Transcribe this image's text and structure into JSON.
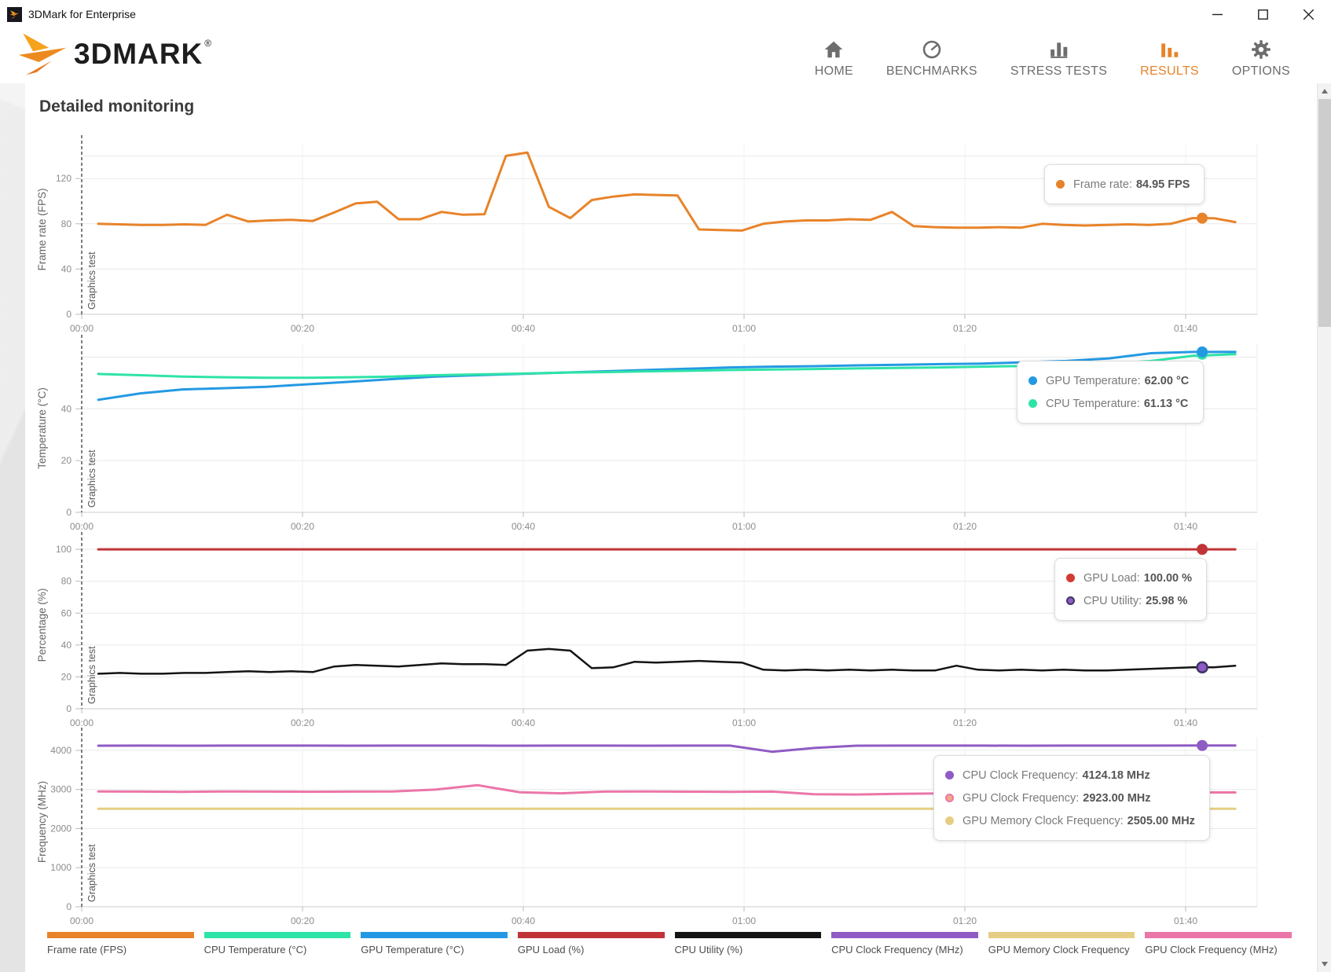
{
  "titlebar": {
    "title": "3DMark for Enterprise"
  },
  "brand": {
    "wordmark": "3DMARK",
    "registered": "®"
  },
  "nav": {
    "items": [
      {
        "label": "HOME",
        "icon": "home-icon",
        "active": false
      },
      {
        "label": "BENCHMARKS",
        "icon": "benchmarks-icon",
        "active": false
      },
      {
        "label": "STRESS TESTS",
        "icon": "stress-tests-icon",
        "active": false
      },
      {
        "label": "RESULTS",
        "icon": "results-icon",
        "active": true
      },
      {
        "label": "OPTIONS",
        "icon": "options-icon",
        "active": false
      }
    ]
  },
  "main": {
    "heading": "Detailed monitoring"
  },
  "accent_color": "#E8832A",
  "chart_data": [
    {
      "type": "line",
      "ylabel": "Frame rate (FPS)",
      "annotation": "Graphics test",
      "ylim": [
        0,
        150
      ],
      "y_ticks": [
        0,
        40,
        80,
        120
      ],
      "grid_only": [
        140
      ],
      "x_ticks": [
        "00:00",
        "00:20",
        "00:40",
        "01:00",
        "01:20",
        "01:40"
      ],
      "x_seconds": [
        0,
        20,
        40,
        60,
        80,
        100
      ],
      "t0": 1.5,
      "duration_s": 104.5,
      "series": [
        {
          "name": "Frame rate (FPS)",
          "color": "#E8832A",
          "width": 3,
          "values": [
            80,
            79.5,
            79,
            79,
            79.5,
            79,
            88,
            82,
            83,
            83.5,
            82.5,
            90,
            98,
            99.5,
            84,
            84,
            90.5,
            88,
            88.5,
            140,
            143,
            95,
            85,
            101,
            104,
            106,
            105.5,
            105,
            75,
            74.5,
            74,
            80,
            82,
            83,
            83,
            84,
            83.5,
            90.5,
            78,
            77,
            76.5,
            76.5,
            77,
            76.5,
            80,
            79,
            78.5,
            79,
            79.5,
            79,
            80,
            85,
            84.95,
            81.5
          ]
        }
      ],
      "markers": [
        {
          "t": 101.5,
          "v": 84.95,
          "fill": "#E8832A"
        }
      ],
      "tooltip": {
        "rows": [
          {
            "label": "Frame rate:",
            "value": "84.95 FPS",
            "dot": "#E8832A"
          }
        ]
      }
    },
    {
      "type": "line",
      "ylabel": "Temperature (°C)",
      "annotation": "Graphics test",
      "ylim": [
        0,
        65
      ],
      "y_ticks": [
        0,
        20,
        40
      ],
      "grid_only": [
        60
      ],
      "x_ticks": [
        "00:00",
        "00:20",
        "00:40",
        "01:00",
        "01:20",
        "01:40"
      ],
      "x_seconds": [
        0,
        20,
        40,
        60,
        80,
        100
      ],
      "t0": 1.5,
      "duration_s": 104.5,
      "series": [
        {
          "name": "GPU Temperature (°C)",
          "color": "#2499E3",
          "width": 3,
          "values": [
            43.5,
            46,
            47.5,
            48,
            48.5,
            49.5,
            50.5,
            51.5,
            52.5,
            53,
            53.5,
            54,
            54.5,
            55,
            55.5,
            56,
            56.3,
            56.5,
            56.8,
            57,
            57.3,
            57.5,
            58,
            58.5,
            59.5,
            61.5,
            62,
            62
          ]
        },
        {
          "name": "CPU Temperature (°C)",
          "color": "#2EE3A7",
          "width": 3,
          "values": [
            53.5,
            53,
            52.5,
            52.2,
            52,
            52,
            52.2,
            52.5,
            53,
            53.3,
            53.6,
            54,
            54.2,
            54.5,
            54.7,
            55,
            55.2,
            55.4,
            55.6,
            55.8,
            56,
            56.3,
            56.6,
            57,
            57.5,
            58.5,
            60.5,
            61.13
          ]
        }
      ],
      "markers": [
        {
          "t": 101.5,
          "v": 61.13,
          "fill": "#2EE3A7"
        },
        {
          "t": 101.5,
          "v": 62.0,
          "fill": "#2499E3"
        }
      ],
      "tooltip": {
        "rows": [
          {
            "label": "GPU Temperature:",
            "value": "62.00 °C",
            "dot": "#2499E3"
          },
          {
            "label": "CPU Temperature:",
            "value": "61.13 °C",
            "dot": "#2EE3A7"
          }
        ]
      }
    },
    {
      "type": "line",
      "ylabel": "Percentage (%)",
      "annotation": "Graphics test",
      "ylim": [
        0,
        105
      ],
      "y_ticks": [
        0,
        20,
        40,
        60,
        80,
        100
      ],
      "grid_only": [],
      "x_ticks": [
        "00:00",
        "00:20",
        "00:40",
        "01:00",
        "01:20",
        "01:40"
      ],
      "x_seconds": [
        0,
        20,
        40,
        60,
        80,
        100
      ],
      "t0": 1.5,
      "duration_s": 104.5,
      "series": [
        {
          "name": "GPU Load (%)",
          "color": "#C03438",
          "width": 3,
          "values": [
            100,
            100
          ]
        },
        {
          "name": "CPU Utility (%)",
          "color": "#141414",
          "width": 2.5,
          "values": [
            22,
            22.5,
            22,
            22,
            22.5,
            22.5,
            23,
            23.5,
            23,
            23.5,
            23,
            26.5,
            27.5,
            27,
            26.5,
            27.5,
            28.5,
            28,
            28,
            27.5,
            36.5,
            37.5,
            36.5,
            25.5,
            26,
            29.5,
            29,
            29.5,
            30,
            29.5,
            29,
            24.5,
            24,
            24.5,
            24,
            24.5,
            24,
            24.5,
            24,
            24,
            27,
            24.5,
            24,
            24.5,
            24,
            24.5,
            24,
            24,
            24.5,
            25,
            25.5,
            26,
            25.98,
            27
          ]
        }
      ],
      "markers": [
        {
          "t": 101.5,
          "v": 100,
          "fill": "#C03438"
        },
        {
          "t": 101.5,
          "v": 25.98,
          "fill": "#8F5BC4",
          "ring": "#3F3566"
        }
      ],
      "tooltip": {
        "rows": [
          {
            "label": "GPU Load:",
            "value": "100.00 %",
            "dot": "#D23A32"
          },
          {
            "label": "CPU Utility:",
            "value": "25.98 %",
            "dot": "#8F5BC4",
            "dot_ring": "#3F3566"
          }
        ]
      }
    },
    {
      "type": "line",
      "ylabel": "Frequency (MHz)",
      "annotation": "Graphics test",
      "ylim": [
        0,
        4340
      ],
      "y_ticks": [
        0,
        1000,
        2000,
        3000,
        4000
      ],
      "grid_only": [],
      "x_ticks": [
        "00:00",
        "00:20",
        "00:40",
        "01:00",
        "01:20",
        "01:40"
      ],
      "x_seconds": [
        0,
        20,
        40,
        60,
        80,
        100
      ],
      "t0": 1.5,
      "duration_s": 104.5,
      "series": [
        {
          "name": "CPU Clock Frequency (MHz)",
          "color": "#8F5BC4",
          "width": 3,
          "values": [
            4118,
            4120,
            4119,
            4120,
            4121,
            4120,
            4119,
            4120,
            4120,
            4121,
            4119,
            4120,
            4120,
            4119,
            4121,
            4120,
            3965,
            4060,
            4119,
            4120,
            4120,
            4121,
            4119,
            4120,
            4120,
            4121,
            4124,
            4124.18
          ]
        },
        {
          "name": "GPU Clock Frequency (MHz)",
          "color": "#EB76A8",
          "width": 3,
          "values": [
            2950,
            2945,
            2940,
            2950,
            2945,
            2942,
            2946,
            2950,
            2995,
            3110,
            2930,
            2902,
            2946,
            2950,
            2944,
            2940,
            2946,
            2880,
            2872,
            2890,
            2900,
            2896,
            2890,
            2886,
            2872,
            2882,
            2923,
            2923
          ]
        },
        {
          "name": "GPU Memory Clock Frequency",
          "color": "#E5CE84",
          "width": 3,
          "values": [
            2505,
            2505
          ]
        }
      ],
      "markers": [
        {
          "t": 101.5,
          "v": 4124.18,
          "fill": "#8F5BC4"
        },
        {
          "t": 101.5,
          "v": 2923,
          "fill": "#F2A983",
          "ring": "#EB76A8"
        },
        {
          "t": 101.5,
          "v": 2505,
          "fill": "#E5CE84",
          "ring": "#D9BC5F"
        }
      ],
      "tooltip": {
        "rows": [
          {
            "label": "CPU Clock Frequency:",
            "value": "4124.18 MHz",
            "dot": "#8F5BC4"
          },
          {
            "label": "GPU Clock Frequency:",
            "value": "2923.00 MHz",
            "dot": "#F2A983",
            "dot_ring": "#EB76A8"
          },
          {
            "label": "GPU Memory Clock Frequency:",
            "value": "2505.00 MHz",
            "dot": "#E5CE84"
          }
        ]
      }
    }
  ],
  "legend": {
    "items": [
      {
        "label": "Frame rate (FPS)",
        "color": "#E8832A"
      },
      {
        "label": "CPU Temperature (°C)",
        "color": "#2EE3A7"
      },
      {
        "label": "GPU Temperature (°C)",
        "color": "#2499E3"
      },
      {
        "label": "GPU Load (%)",
        "color": "#C03438"
      },
      {
        "label": "CPU Utility (%)",
        "color": "#141414"
      },
      {
        "label": "CPU Clock Frequency (MHz)",
        "color": "#8F5BC4"
      },
      {
        "label": "GPU Memory Clock Frequency",
        "color": "#E5CE84"
      },
      {
        "label": "GPU Clock Frequency (MHz)",
        "color": "#EB76A8"
      }
    ]
  }
}
